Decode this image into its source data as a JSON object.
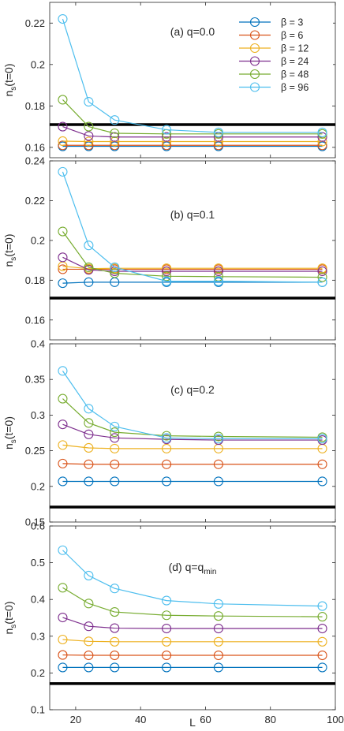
{
  "chart_data": {
    "type": "line",
    "x": [
      16,
      24,
      32,
      48,
      64,
      96
    ],
    "xlim": [
      12,
      100
    ],
    "xticks": [
      "20",
      "40",
      "60",
      "80",
      "100"
    ],
    "xlabel": "L",
    "ylabel": "n_s(t=0)",
    "reference_line_y": 0.171,
    "legend": {
      "placement": "top-right of panel (a)",
      "entries": [
        {
          "name": "β = 3",
          "color": "#0072BD"
        },
        {
          "name": "β = 6",
          "color": "#D95319"
        },
        {
          "name": "β = 12",
          "color": "#EDB120"
        },
        {
          "name": "β = 24",
          "color": "#7E2F8E"
        },
        {
          "name": "β = 48",
          "color": "#77AC30"
        },
        {
          "name": "β = 96",
          "color": "#4DBEEE"
        }
      ]
    },
    "panels": [
      {
        "title": "(a) q=0.0",
        "title_main": "(a) q=0.0",
        "title_sub": "",
        "ylim": [
          0.155,
          0.23
        ],
        "yticks": [
          "0.16",
          "0.18",
          "0.2",
          "0.22"
        ],
        "series": [
          {
            "color": "#0072BD",
            "values": [
              0.1605,
              0.1605,
              0.1605,
              0.1605,
              0.1605,
              0.1605
            ]
          },
          {
            "color": "#D95319",
            "values": [
              0.161,
              0.161,
              0.161,
              0.161,
              0.161,
              0.161
            ]
          },
          {
            "color": "#EDB120",
            "values": [
              0.163,
              0.1628,
              0.1628,
              0.1628,
              0.1628,
              0.1628
            ]
          },
          {
            "color": "#7E2F8E",
            "values": [
              0.17,
              0.1655,
              0.165,
              0.165,
              0.165,
              0.165
            ]
          },
          {
            "color": "#77AC30",
            "values": [
              0.183,
              0.17,
              0.1668,
              0.1665,
              0.1665,
              0.1665
            ]
          },
          {
            "color": "#4DBEEE",
            "values": [
              0.222,
              0.182,
              0.1732,
              0.1685,
              0.1672,
              0.1672
            ]
          }
        ]
      },
      {
        "title": "(b) q=0.1",
        "title_main": "(b) q=0.1",
        "title_sub": "",
        "ylim": [
          0.15,
          0.24
        ],
        "yticks": [
          "0.16",
          "0.18",
          "0.2",
          "0.22",
          "0.24"
        ],
        "series": [
          {
            "color": "#0072BD",
            "values": [
              0.1785,
              0.179,
              0.179,
              0.179,
              0.179,
              0.179
            ]
          },
          {
            "color": "#D95319",
            "values": [
              0.1855,
              0.1855,
              0.1855,
              0.1855,
              0.1855,
              0.1855
            ]
          },
          {
            "color": "#EDB120",
            "values": [
              0.187,
              0.1858,
              0.186,
              0.186,
              0.186,
              0.186
            ]
          },
          {
            "color": "#7E2F8E",
            "values": [
              0.1915,
              0.1852,
              0.1845,
              0.1845,
              0.1845,
              0.1845
            ]
          },
          {
            "color": "#77AC30",
            "values": [
              0.2045,
              0.1865,
              0.1835,
              0.182,
              0.1818,
              0.1815
            ]
          },
          {
            "color": "#4DBEEE",
            "values": [
              0.2345,
              0.1975,
              0.1865,
              0.1795,
              0.1795,
              0.179
            ]
          }
        ]
      },
      {
        "title": "(c) q=0.2",
        "title_main": "(c) q=0.2",
        "title_sub": "",
        "ylim": [
          0.15,
          0.4
        ],
        "yticks": [
          "0.15",
          "0.2",
          "0.25",
          "0.3",
          "0.35",
          "0.4"
        ],
        "series": [
          {
            "color": "#0072BD",
            "values": [
              0.207,
              0.207,
              0.207,
              0.207,
              0.207,
              0.207
            ]
          },
          {
            "color": "#D95319",
            "values": [
              0.232,
              0.231,
              0.231,
              0.231,
              0.231,
              0.231
            ]
          },
          {
            "color": "#EDB120",
            "values": [
              0.258,
              0.254,
              0.253,
              0.253,
              0.253,
              0.253
            ]
          },
          {
            "color": "#7E2F8E",
            "values": [
              0.287,
              0.273,
              0.268,
              0.266,
              0.265,
              0.265
            ]
          },
          {
            "color": "#77AC30",
            "values": [
              0.323,
              0.289,
              0.276,
              0.271,
              0.27,
              0.269
            ]
          },
          {
            "color": "#4DBEEE",
            "values": [
              0.362,
              0.309,
              0.284,
              0.268,
              0.267,
              0.267
            ]
          }
        ]
      },
      {
        "title": "(d) q=q_min",
        "title_main": "(d) q=q",
        "title_sub": "min",
        "ylim": [
          0.1,
          0.6
        ],
        "yticks": [
          "0.1",
          "0.2",
          "0.3",
          "0.4",
          "0.5",
          "0.6"
        ],
        "series": [
          {
            "color": "#0072BD",
            "values": [
              0.215,
              0.215,
              0.215,
              0.215,
              0.215,
              0.215
            ]
          },
          {
            "color": "#D95319",
            "values": [
              0.249,
              0.248,
              0.248,
              0.248,
              0.248,
              0.248
            ]
          },
          {
            "color": "#EDB120",
            "values": [
              0.291,
              0.286,
              0.285,
              0.285,
              0.285,
              0.285
            ]
          },
          {
            "color": "#7E2F8E",
            "values": [
              0.351,
              0.327,
              0.322,
              0.321,
              0.321,
              0.321
            ]
          },
          {
            "color": "#77AC30",
            "values": [
              0.432,
              0.389,
              0.366,
              0.357,
              0.355,
              0.353
            ]
          },
          {
            "color": "#4DBEEE",
            "values": [
              0.534,
              0.465,
              0.43,
              0.397,
              0.388,
              0.382
            ]
          }
        ]
      }
    ]
  }
}
